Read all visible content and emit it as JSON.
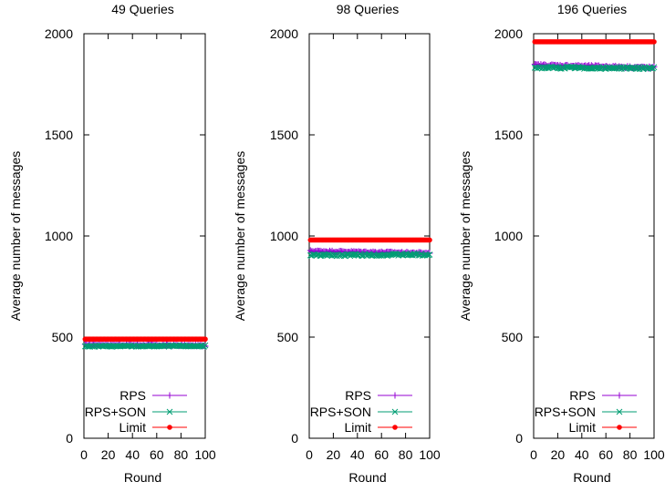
{
  "chart_data": [
    {
      "type": "scatter",
      "title": "49 Queries",
      "xlabel": "Round",
      "ylabel": "Average number of messages",
      "xlim": [
        0,
        100
      ],
      "ylim": [
        0,
        2000
      ],
      "xticks": [
        0,
        20,
        40,
        60,
        80,
        100
      ],
      "yticks": [
        0,
        500,
        1000,
        1500,
        2000
      ],
      "grid": false,
      "legend_position": "bottom-right",
      "series": [
        {
          "name": "RPS",
          "marker": "plus",
          "color": "#9400d3",
          "y_from_round_1_to_100": {
            "start": 462,
            "end": 458,
            "jitter": 3
          }
        },
        {
          "name": "RPS+SON",
          "marker": "cross",
          "color": "#009e73",
          "y_from_round_1_to_100": {
            "start": 455,
            "end": 456,
            "jitter": 3
          }
        },
        {
          "name": "Limit",
          "marker": "dot",
          "color": "#ff0000",
          "y_from_round_1_to_100": {
            "start": 490,
            "end": 490,
            "jitter": 0
          }
        }
      ]
    },
    {
      "type": "scatter",
      "title": "98 Queries",
      "xlabel": "Round",
      "ylabel": "Average number of messages",
      "xlim": [
        0,
        100
      ],
      "ylim": [
        0,
        2000
      ],
      "xticks": [
        0,
        20,
        40,
        60,
        80,
        100
      ],
      "yticks": [
        0,
        500,
        1000,
        1500,
        2000
      ],
      "grid": false,
      "legend_position": "bottom-right",
      "series": [
        {
          "name": "RPS",
          "marker": "plus",
          "color": "#9400d3",
          "y_from_round_1_to_100": {
            "start": 925,
            "end": 915,
            "jitter": 4
          }
        },
        {
          "name": "RPS+SON",
          "marker": "cross",
          "color": "#009e73",
          "y_from_round_1_to_100": {
            "start": 905,
            "end": 908,
            "jitter": 5
          }
        },
        {
          "name": "Limit",
          "marker": "dot",
          "color": "#ff0000",
          "y_from_round_1_to_100": {
            "start": 980,
            "end": 980,
            "jitter": 0
          }
        }
      ]
    },
    {
      "type": "scatter",
      "title": "196 Queries",
      "xlabel": "Round",
      "ylabel": "Average number of messages",
      "xlim": [
        0,
        100
      ],
      "ylim": [
        0,
        2000
      ],
      "xticks": [
        0,
        20,
        40,
        60,
        80,
        100
      ],
      "yticks": [
        0,
        500,
        1000,
        1500,
        2000
      ],
      "grid": false,
      "legend_position": "bottom-right",
      "series": [
        {
          "name": "RPS",
          "marker": "plus",
          "color": "#9400d3",
          "y_from_round_1_to_100": {
            "start": 1845,
            "end": 1832,
            "jitter": 5
          }
        },
        {
          "name": "RPS+SON",
          "marker": "cross",
          "color": "#009e73",
          "y_from_round_1_to_100": {
            "start": 1832,
            "end": 1830,
            "jitter": 5
          }
        },
        {
          "name": "Limit",
          "marker": "dot",
          "color": "#ff0000",
          "y_from_round_1_to_100": {
            "start": 1960,
            "end": 1960,
            "jitter": 0
          }
        }
      ]
    }
  ]
}
